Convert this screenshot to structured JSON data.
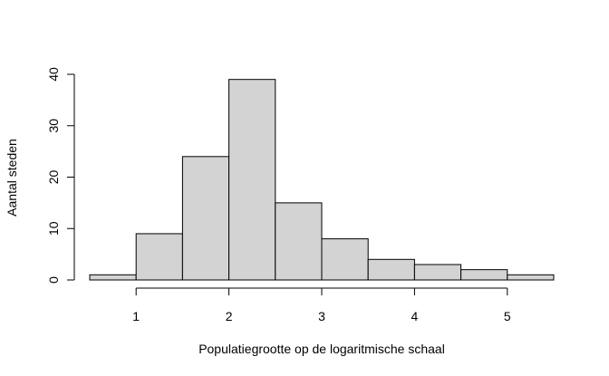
{
  "chart_data": {
    "type": "histogram",
    "xlabel": "Populatiegrootte op de logaritmische schaal",
    "ylabel": "Aantal steden",
    "bin_edges": [
      0.5,
      1.0,
      1.5,
      2.0,
      2.5,
      3.0,
      3.5,
      4.0,
      4.5,
      5.0,
      5.5
    ],
    "counts": [
      1,
      9,
      24,
      39,
      15,
      8,
      4,
      3,
      2,
      1
    ],
    "xticks": [
      1,
      2,
      3,
      4,
      5
    ],
    "xtick_labels": [
      "1",
      "2",
      "3",
      "4",
      "5"
    ],
    "yticks": [
      0,
      10,
      20,
      30,
      40
    ],
    "ytick_labels": [
      "0",
      "10",
      "20",
      "30",
      "40"
    ],
    "xlim": [
      0.5,
      5.5
    ],
    "ylim": [
      0,
      40
    ],
    "bar_fill": "#d3d3d3",
    "bar_stroke": "#000000",
    "grid": false
  }
}
